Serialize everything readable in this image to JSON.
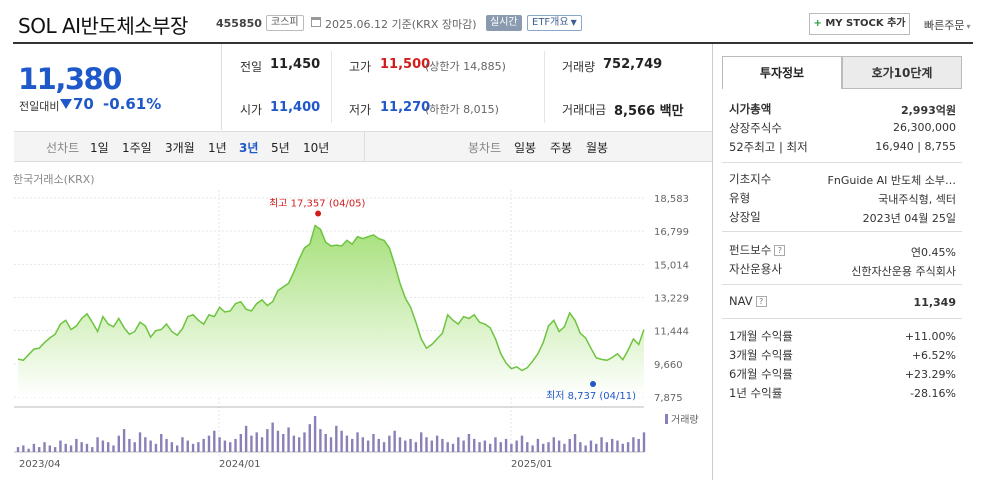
{
  "header": {
    "title": "SOL AI반도체소부장",
    "code": "455850",
    "market": "코스피",
    "date": "2025.06.12 기준(KRX 장마감)",
    "live": "실시간",
    "etf": "ETF개요",
    "mystock": "MY STOCK 추가",
    "quick": "빠른주문"
  },
  "price": {
    "current": "11,380",
    "change_label": "전일대비",
    "change": "70",
    "change_pct": "-0.61%"
  },
  "summary": {
    "prev_label": "전일",
    "prev": "11,450",
    "open_label": "시가",
    "open": "11,400",
    "high_label": "고가",
    "high": "11,500",
    "upper_limit": "(상한가 14,885)",
    "low_label": "저가",
    "low": "11,270",
    "lower_limit": "(하한가 8,015)",
    "volume_label": "거래량",
    "volume": "752,749",
    "amount_label": "거래대금",
    "amount": "8,566 백만"
  },
  "periods": {
    "line_label": "선차트",
    "line": [
      "1일",
      "1주일",
      "3개월",
      "1년",
      "3년",
      "5년",
      "10년"
    ],
    "active": "3년",
    "candle_label": "봉차트",
    "candle": [
      "일봉",
      "주봉",
      "월봉"
    ]
  },
  "chart_source": "한국거래소(KRX)",
  "chart_data": {
    "type": "area",
    "x_start": "2023/04",
    "x_ticks": [
      "2023/04",
      "2024/01",
      "2025/01"
    ],
    "y_ticks": [
      "18,583",
      "16,799",
      "15,014",
      "13,229",
      "11,444",
      "9,660",
      "7,875"
    ],
    "ylim": [
      7875,
      18583
    ],
    "high_label": "최고 17,357 (04/05)",
    "low_label": "최저 8,737 (04/11)",
    "volume_label": "거래량",
    "color": "#6dc43f",
    "values": [
      9920,
      9850,
      10150,
      10450,
      10500,
      10800,
      11050,
      11250,
      11800,
      12000,
      11500,
      11700,
      12100,
      12350,
      11900,
      11400,
      12200,
      11800,
      11650,
      12100,
      11600,
      11250,
      11400,
      11900,
      11700,
      11100,
      11450,
      11500,
      11800,
      11400,
      11200,
      11550,
      12200,
      12300,
      12000,
      11800,
      12300,
      12200,
      12700,
      12450,
      12500,
      12900,
      13000,
      12600,
      12500,
      12900,
      13100,
      12800,
      13000,
      13600,
      13800,
      14000,
      14600,
      15300,
      15900,
      16100,
      17100,
      16900,
      16200,
      16000,
      16050,
      16000,
      16300,
      16100,
      16500,
      16400,
      16500,
      16600,
      16400,
      16300,
      15900,
      15000,
      14000,
      13200,
      12700,
      11900,
      11000,
      10500,
      10700,
      11000,
      11300,
      12300,
      12000,
      11800,
      12200,
      12100,
      12300,
      11900,
      11800,
      11600,
      11000,
      10200,
      9700,
      9400,
      9500,
      9300,
      9450,
      9800,
      10200,
      10800,
      11700,
      12000,
      11400,
      11650,
      12400,
      12000,
      11300,
      11050,
      10500,
      9980,
      9900,
      9850,
      10000,
      10200,
      9880,
      10400,
      11000,
      10700,
      11500
    ],
    "volumes": [
      3,
      4,
      2,
      5,
      3,
      6,
      4,
      3,
      7,
      5,
      4,
      8,
      6,
      5,
      3,
      9,
      7,
      6,
      4,
      10,
      14,
      8,
      6,
      12,
      9,
      7,
      5,
      11,
      8,
      6,
      4,
      9,
      7,
      5,
      6,
      8,
      10,
      13,
      9,
      7,
      6,
      8,
      11,
      16,
      10,
      12,
      9,
      14,
      18,
      13,
      11,
      15,
      10,
      9,
      12,
      17,
      22,
      14,
      11,
      9,
      16,
      13,
      10,
      8,
      12,
      9,
      7,
      11,
      8,
      6,
      10,
      13,
      9,
      7,
      8,
      6,
      12,
      9,
      7,
      10,
      8,
      6,
      5,
      9,
      7,
      11,
      8,
      6,
      7,
      5,
      9,
      6,
      8,
      5,
      7,
      10,
      6,
      4,
      8,
      5,
      6,
      9,
      7,
      5,
      8,
      11,
      6,
      4,
      7,
      5,
      9,
      6,
      8,
      7,
      5,
      6,
      9,
      8,
      12
    ]
  },
  "tabs": [
    "투자정보",
    "호가10단계"
  ],
  "info": {
    "mcap_label": "시가총액",
    "mcap": "2,993억원",
    "shares_label": "상장주식수",
    "shares": "26,300,000",
    "range_label": "52주최고 | 최저",
    "range_high": "16,940",
    "range_low": "8,755",
    "index_label": "기초지수",
    "index": "FnGuide AI 반도체 소부…",
    "type_label": "유형",
    "type": "국내주식형, 섹터",
    "listed_label": "상장일",
    "listed": "2023년 04월 25일",
    "fee_label": "펀드보수",
    "fee": "연0.45%",
    "manager_label": "자산운용사",
    "manager": "신한자산운용 주식회사",
    "nav_label": "NAV",
    "nav": "11,349",
    "r1_label": "1개월 수익률",
    "r1": "+11.00%",
    "r3_label": "3개월 수익률",
    "r3": "+6.52%",
    "r6_label": "6개월 수익률",
    "r6": "+23.29%",
    "r12_label": "1년 수익률",
    "r12": "-28.16%"
  }
}
